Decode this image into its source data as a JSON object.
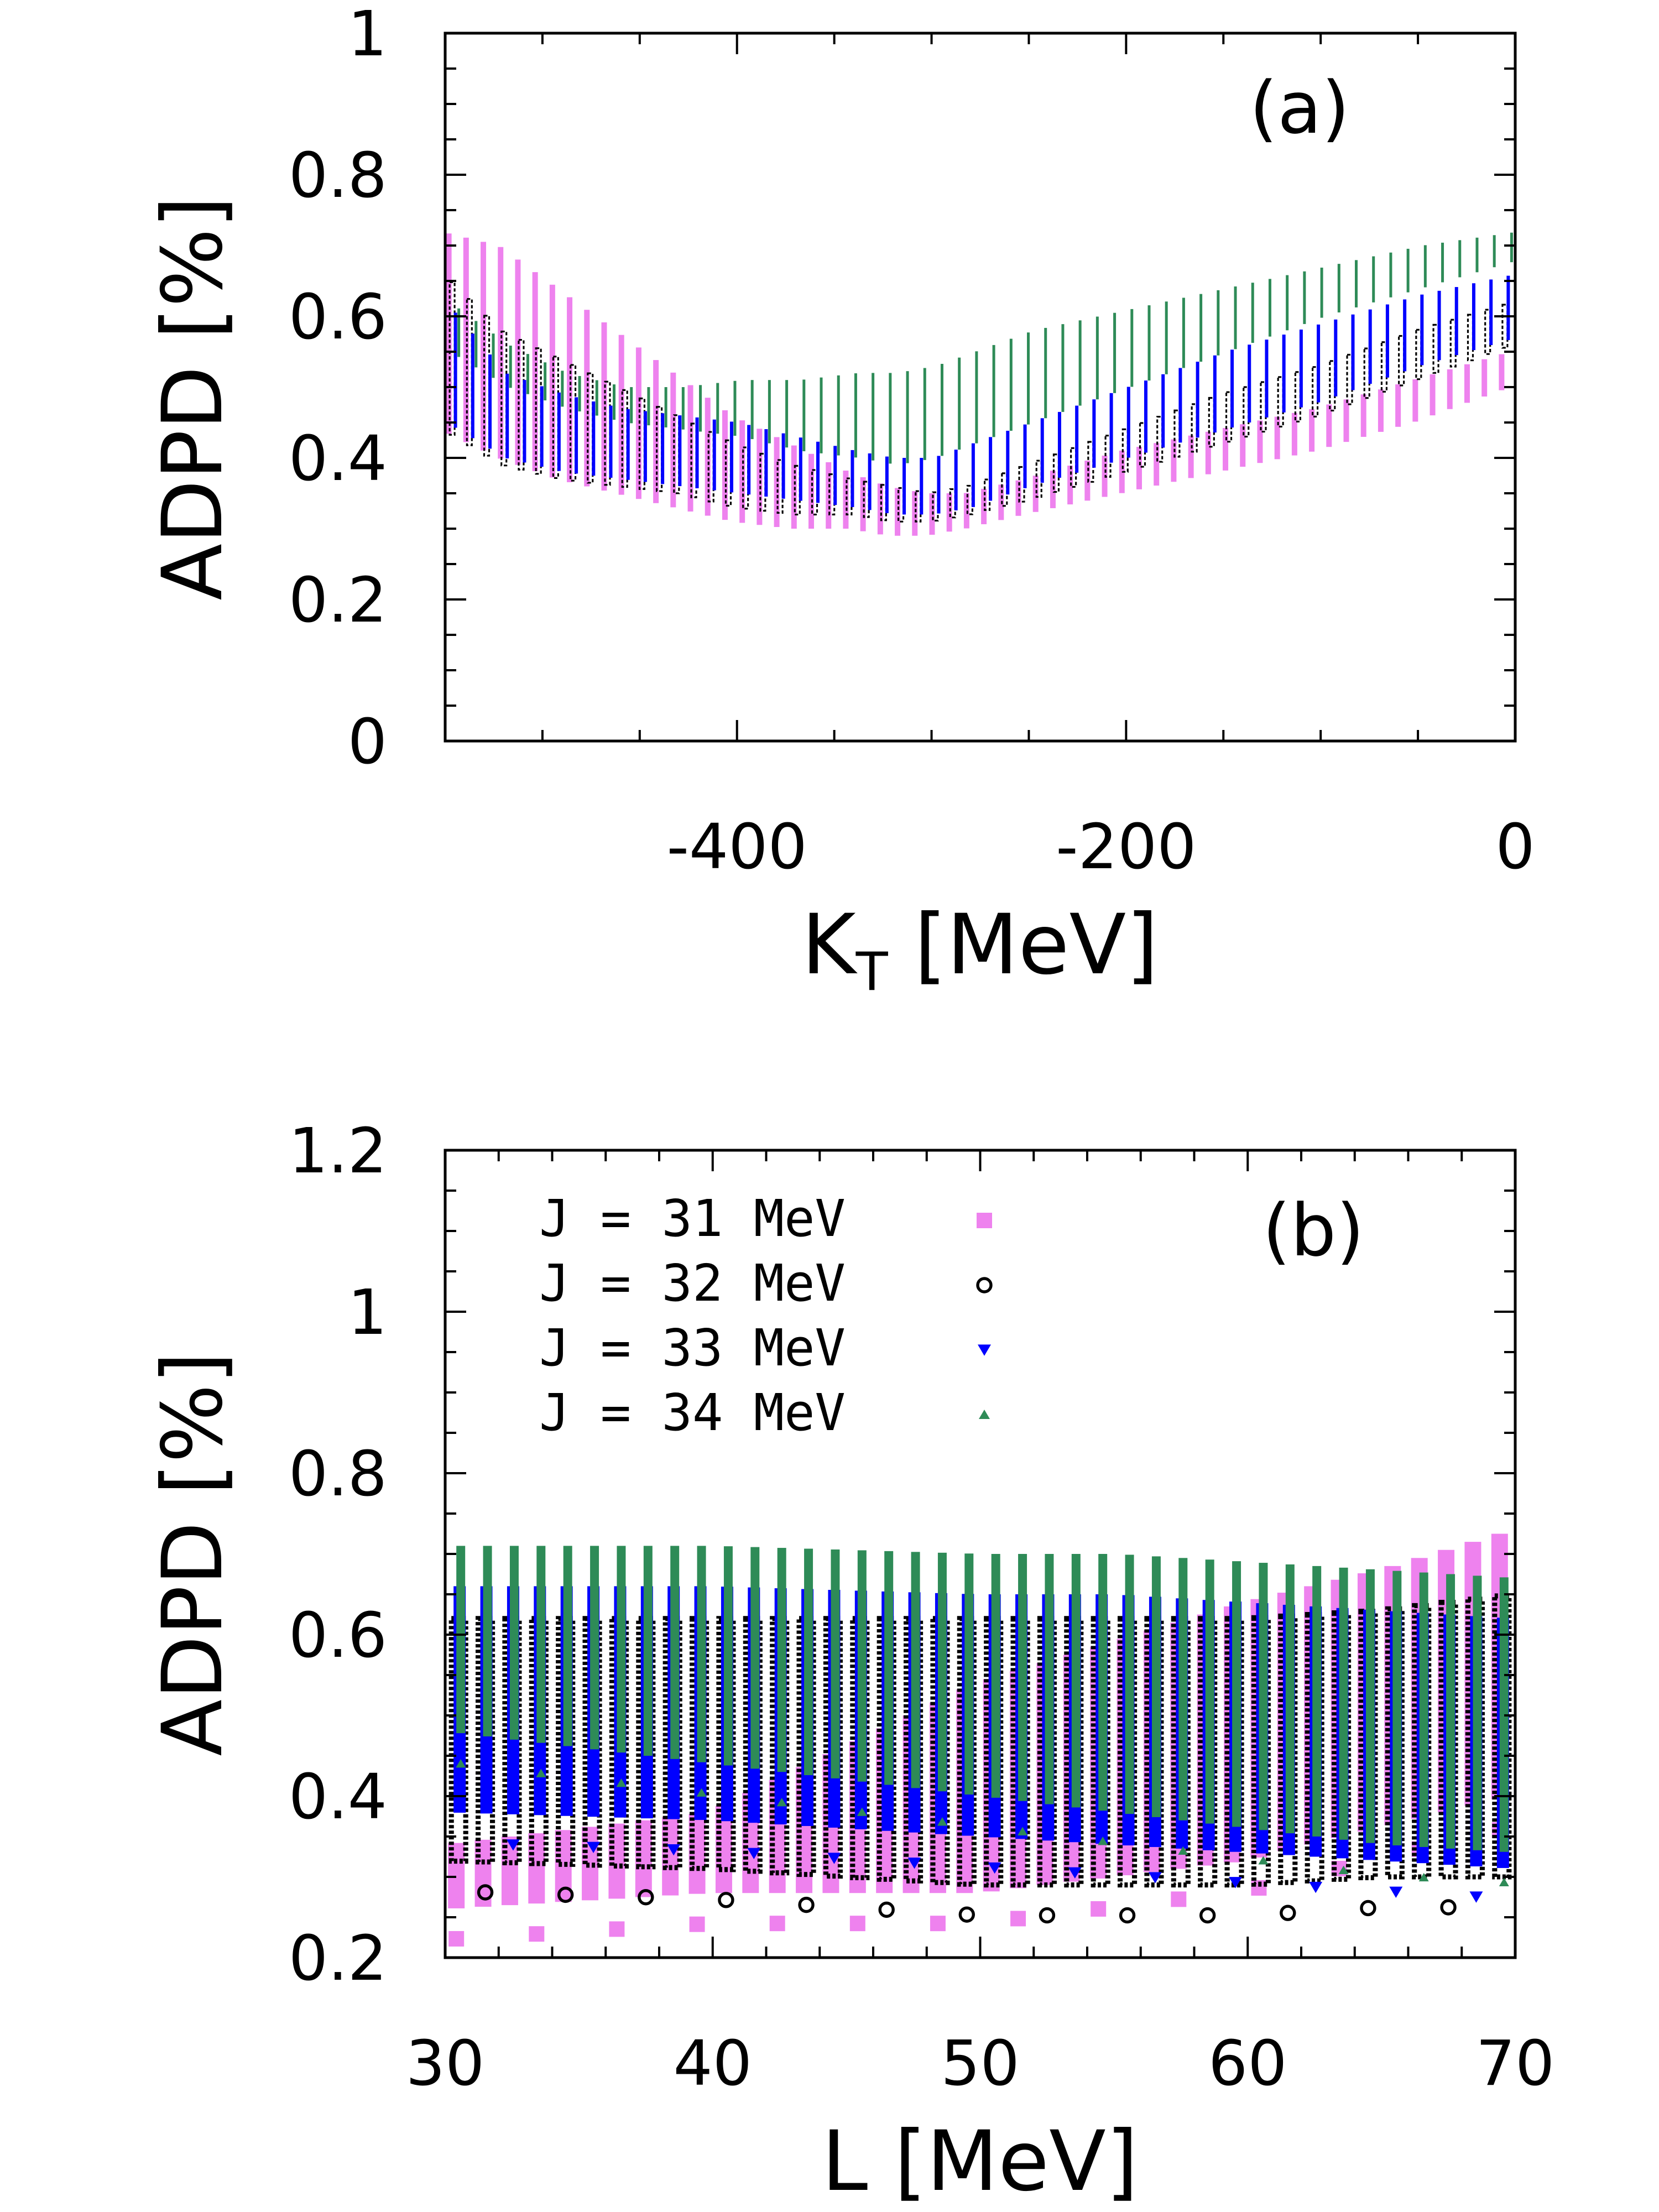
{
  "colors": {
    "J31": "#ee82ee",
    "J32": "#000000",
    "J33": "#0000ff",
    "J34": "#2e8b57"
  },
  "chart_data": [
    {
      "type": "scatter",
      "panel_label": "(a)",
      "xlabel_main": "K",
      "xlabel_sub": "T",
      "xlabel_rest": " [MeV]",
      "ylabel": "ADPD [%]",
      "xlim": [
        -550,
        0
      ],
      "ylim": [
        0,
        1
      ],
      "x_ticks": [
        -400,
        -200,
        0
      ],
      "x_tick_labels": [
        "-400",
        "-200",
        "0"
      ],
      "y_ticks": [
        0,
        0.2,
        0.4,
        0.6,
        0.8,
        1
      ],
      "y_tick_labels": [
        "0",
        "0.2",
        "0.4",
        "0.6",
        "0.8",
        "1"
      ],
      "grid": false,
      "series": [
        {
          "name": "J = 31 MeV",
          "marker": "square",
          "x": [
            -550,
            -520,
            -490,
            -460,
            -430,
            -400,
            -370,
            -340,
            -320,
            -300,
            -280,
            -250,
            -200,
            -150,
            -100,
            -50,
            0
          ],
          "min": [
            0.44,
            0.4,
            0.37,
            0.35,
            0.33,
            0.31,
            0.3,
            0.3,
            0.29,
            0.29,
            0.3,
            0.32,
            0.35,
            0.38,
            0.41,
            0.45,
            0.5
          ],
          "max": [
            0.72,
            0.7,
            0.64,
            0.58,
            0.52,
            0.46,
            0.42,
            0.38,
            0.36,
            0.35,
            0.35,
            0.37,
            0.41,
            0.44,
            0.47,
            0.51,
            0.55
          ]
        },
        {
          "name": "J = 32 MeV",
          "marker": "circle",
          "x": [
            -550,
            -520,
            -490,
            -460,
            -430,
            -400,
            -370,
            -340,
            -320,
            -300,
            -280,
            -250,
            -200,
            -150,
            -100,
            -50,
            0
          ],
          "min": [
            0.44,
            0.39,
            0.37,
            0.36,
            0.35,
            0.33,
            0.32,
            0.32,
            0.31,
            0.31,
            0.32,
            0.34,
            0.38,
            0.42,
            0.46,
            0.51,
            0.56
          ],
          "max": [
            0.66,
            0.58,
            0.54,
            0.5,
            0.46,
            0.42,
            0.39,
            0.37,
            0.36,
            0.35,
            0.36,
            0.39,
            0.44,
            0.49,
            0.53,
            0.58,
            0.62
          ]
        },
        {
          "name": "J = 33 MeV",
          "marker": "triangle-down",
          "x": [
            -550,
            -520,
            -490,
            -460,
            -430,
            -400,
            -370,
            -340,
            -320,
            -300,
            -280,
            -250,
            -200,
            -150,
            -100,
            -50,
            0
          ],
          "min": [
            0.45,
            0.4,
            0.38,
            0.37,
            0.36,
            0.35,
            0.34,
            0.33,
            0.32,
            0.32,
            0.33,
            0.36,
            0.4,
            0.44,
            0.48,
            0.53,
            0.57
          ],
          "max": [
            0.62,
            0.52,
            0.49,
            0.47,
            0.46,
            0.45,
            0.43,
            0.41,
            0.4,
            0.4,
            0.42,
            0.45,
            0.5,
            0.55,
            0.59,
            0.63,
            0.66
          ]
        },
        {
          "name": "J = 34 MeV",
          "marker": "triangle-up",
          "x": [
            -550,
            -520,
            -490,
            -460,
            -430,
            -400,
            -370,
            -340,
            -320,
            -300,
            -280,
            -250,
            -200,
            -150,
            -100,
            -50,
            0
          ],
          "min": [
            0.55,
            0.5,
            0.47,
            0.45,
            0.44,
            0.43,
            0.41,
            0.4,
            0.39,
            0.4,
            0.42,
            0.45,
            0.5,
            0.55,
            0.6,
            0.64,
            0.68
          ],
          "max": [
            0.62,
            0.56,
            0.52,
            0.5,
            0.5,
            0.51,
            0.51,
            0.52,
            0.52,
            0.53,
            0.55,
            0.58,
            0.61,
            0.64,
            0.67,
            0.7,
            0.72
          ]
        }
      ]
    },
    {
      "type": "scatter",
      "panel_label": "(b)",
      "xlabel": "L [MeV]",
      "ylabel": "ADPD [%]",
      "xlim": [
        30,
        70
      ],
      "ylim": [
        0.2,
        1.2
      ],
      "x_ticks": [
        30,
        40,
        50,
        60,
        70
      ],
      "x_tick_labels": [
        "30",
        "40",
        "50",
        "60",
        "70"
      ],
      "y_ticks": [
        0.2,
        0.4,
        0.6,
        0.8,
        1,
        1.2
      ],
      "y_tick_labels": [
        "0.2",
        "0.4",
        "0.6",
        "0.8",
        "1",
        "1.2"
      ],
      "grid": false,
      "legend_position": "top-left",
      "legend": [
        "J = 31 MeV",
        "J = 32 MeV",
        "J = 33 MeV",
        "J = 34 MeV"
      ],
      "series": [
        {
          "name": "J = 31 MeV",
          "marker": "square",
          "x": [
            30,
            40,
            50,
            55,
            60,
            65,
            70
          ],
          "min": [
            0.26,
            0.28,
            0.28,
            0.3,
            0.32,
            0.36,
            0.4
          ],
          "max": [
            0.34,
            0.38,
            0.54,
            0.59,
            0.64,
            0.68,
            0.73
          ]
        },
        {
          "name": "J = 32 MeV",
          "marker": "circle",
          "x": [
            30,
            40,
            50,
            55,
            60,
            65,
            70
          ],
          "min": [
            0.32,
            0.31,
            0.29,
            0.29,
            0.29,
            0.3,
            0.3
          ],
          "max": [
            0.62,
            0.62,
            0.62,
            0.62,
            0.62,
            0.63,
            0.65
          ]
        },
        {
          "name": "J = 33 MeV",
          "marker": "triangle-down",
          "x": [
            30,
            40,
            50,
            55,
            60,
            65,
            70
          ],
          "min": [
            0.38,
            0.37,
            0.35,
            0.34,
            0.33,
            0.32,
            0.31
          ],
          "max": [
            0.66,
            0.66,
            0.65,
            0.65,
            0.64,
            0.63,
            0.62
          ]
        },
        {
          "name": "J = 34 MeV",
          "marker": "triangle-up",
          "x": [
            30,
            40,
            50,
            55,
            60,
            65,
            70
          ],
          "min": [
            0.48,
            0.44,
            0.4,
            0.38,
            0.36,
            0.34,
            0.33
          ],
          "max": [
            0.71,
            0.71,
            0.7,
            0.7,
            0.69,
            0.68,
            0.67
          ]
        }
      ]
    }
  ]
}
